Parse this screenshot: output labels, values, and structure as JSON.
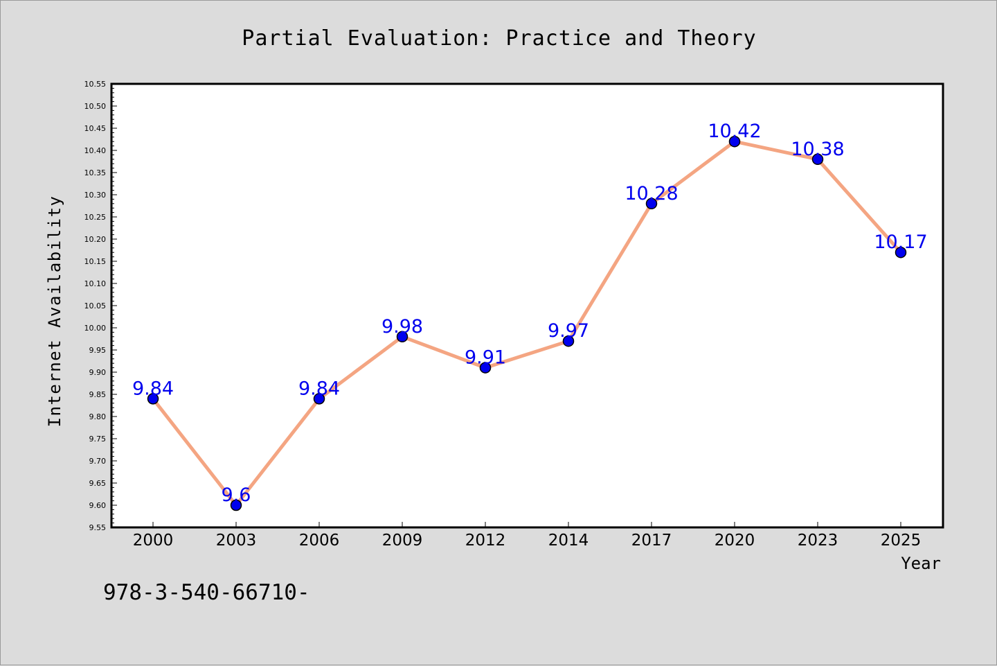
{
  "colors": {
    "background": "#dcdcdc",
    "plot_background": "#ffffff",
    "line": "#f4a582",
    "marker": "#0000ee",
    "label": "#0000ee"
  },
  "footer": {
    "text": "978-3-540-66710-"
  },
  "chart_data": {
    "type": "line",
    "title": "Partial Evaluation: Practice and Theory",
    "xlabel": "Year",
    "ylabel": "Internet Availability",
    "categories": [
      "2000",
      "2003",
      "2006",
      "2009",
      "2012",
      "2014",
      "2017",
      "2020",
      "2023",
      "2025"
    ],
    "series": [
      {
        "values": [
          9.84,
          9.6,
          9.84,
          9.98,
          9.91,
          9.97,
          10.28,
          10.42,
          10.38,
          10.17
        ],
        "labels": [
          "9.84",
          "9.6",
          "9.84",
          "9.98",
          "9.91",
          "9.97",
          "10.28",
          "10.42",
          "10.38",
          "10.17"
        ]
      }
    ],
    "ylim": [
      9.55,
      10.55
    ],
    "yticks": [
      "9.55",
      "9.60",
      "9.65",
      "9.70",
      "9.75",
      "9.80",
      "9.85",
      "9.90",
      "9.95",
      "10.00",
      "10.05",
      "10.10",
      "10.15",
      "10.20",
      "10.25",
      "10.30",
      "10.35",
      "10.40",
      "10.45",
      "10.50",
      "10.55"
    ],
    "grid": false,
    "legend": "none"
  }
}
